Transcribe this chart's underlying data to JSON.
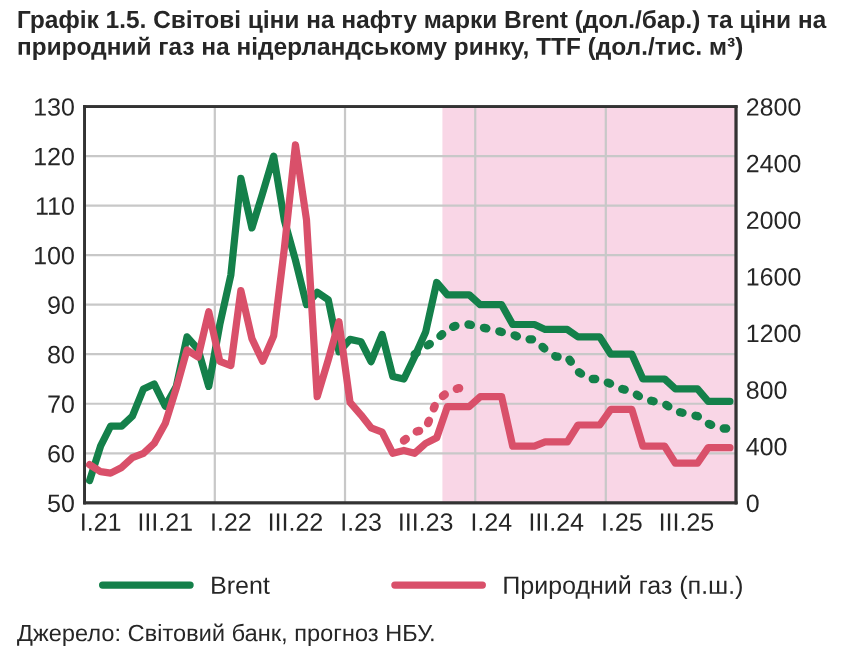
{
  "chart_data": {
    "type": "line",
    "title": "Графік 1.5. Світові ціни на нафту марки Brent (дол./бар.) та ціни на природний газ на нідерландському ринку, TTF (дол./тис. м³)",
    "annotations": [
      "Джерело: Світовий банк, прогноз НБУ."
    ],
    "x": [
      "2021-01-15",
      "2021-02-15",
      "2021-03-15",
      "2021-04-15",
      "2021-05-15",
      "2021-06-15",
      "2021-07-15",
      "2021-08-15",
      "2021-09-15",
      "2021-10-15",
      "2021-11-15",
      "2021-12-15",
      "2022-01-15",
      "2022-02-15",
      "2022-03-15",
      "2022-04-15",
      "2022-05-15",
      "2022-06-15",
      "2022-07-15",
      "2022-08-15",
      "2022-09-15",
      "2022-10-15",
      "2022-11-15",
      "2022-12-15",
      "2023-01-15",
      "2023-02-15",
      "2023-03-15",
      "2023-04-15",
      "2023-05-15",
      "2023-06-15",
      "2023-07-15",
      "2023-08-15",
      "2023-09-15",
      "2023-10-15",
      "2023-11-15",
      "2023-12-15",
      "2024-01-15",
      "2024-02-15",
      "2024-03-15",
      "2024-04-15",
      "2024-05-15",
      "2024-06-15",
      "2024-07-15",
      "2024-08-15",
      "2024-09-15",
      "2024-10-15",
      "2024-11-15",
      "2024-12-15",
      "2025-01-15",
      "2025-02-15",
      "2025-03-15",
      "2025-04-15",
      "2025-05-15",
      "2025-06-15",
      "2025-07-15",
      "2025-08-15",
      "2025-09-15",
      "2025-10-15",
      "2025-11-15",
      "2025-12-15"
    ],
    "series": [
      {
        "name": "Brent",
        "color": "#14804a",
        "line_style": "solid",
        "values": [
          54.5,
          61.5,
          65.5,
          65.5,
          67.5,
          73,
          74,
          69.5,
          73.5,
          83.5,
          81,
          73.5,
          86,
          96,
          115.5,
          105.5,
          112.5,
          120,
          107,
          99,
          90,
          92.5,
          91,
          80.5,
          83,
          82.5,
          78.5,
          84,
          75.5,
          75,
          79.5,
          84.5,
          94.5,
          92,
          92,
          92,
          90,
          90,
          90,
          86,
          86,
          86,
          85,
          85,
          85,
          83.5,
          83.5,
          83.5,
          80,
          80,
          80,
          75,
          75,
          75,
          73,
          73,
          73,
          70.5,
          70.5,
          70.5
        ]
      },
      {
        "name": "Природний газ (п.ш.)",
        "color": "#d9506a",
        "axis": "y2",
        "line_style": "solid",
        "values": [
          270,
          220,
          210,
          250,
          320,
          350,
          420,
          560,
          810,
          1080,
          1030,
          1350,
          1000,
          970,
          1500,
          1160,
          1000,
          1180,
          1800,
          2530,
          2000,
          750,
          1010,
          1280,
          710,
          620,
          530,
          500,
          350,
          370,
          350,
          420,
          460,
          680,
          680,
          680,
          750,
          750,
          750,
          400,
          400,
          400,
          430,
          430,
          430,
          550,
          550,
          550,
          660,
          660,
          660,
          400,
          400,
          400,
          280,
          280,
          280,
          390,
          390,
          390
        ]
      },
      {
        "color": "#14804a",
        "line_style": "dotted",
        "x": [
          "2023-07-15",
          "2023-08-15",
          "2023-09-15",
          "2023-10-15",
          "2023-11-15",
          "2023-12-15",
          "2024-01-15",
          "2024-02-15",
          "2024-03-15",
          "2024-04-15",
          "2024-05-15",
          "2024-06-15",
          "2024-07-15",
          "2024-08-15",
          "2024-09-15",
          "2024-10-15",
          "2024-11-15",
          "2024-12-15",
          "2025-01-15",
          "2025-02-15",
          "2025-03-15",
          "2025-04-15",
          "2025-05-15",
          "2025-06-15",
          "2025-07-15",
          "2025-08-15",
          "2025-09-15",
          "2025-10-15",
          "2025-11-15",
          "2025-12-15"
        ],
        "values": [
          80,
          81.5,
          83,
          85,
          86,
          86,
          85.5,
          85,
          84.5,
          84,
          83,
          83,
          81,
          79.5,
          79.5,
          76.5,
          75,
          75,
          74,
          73,
          72.5,
          71,
          70.5,
          70,
          68.5,
          68,
          67.5,
          66,
          65,
          65
        ]
      },
      {
        "color": "#d9506a",
        "axis": "y2",
        "line_style": "dotted",
        "x": [
          "2023-06-15",
          "2023-07-15",
          "2023-08-15",
          "2023-09-15",
          "2023-10-15",
          "2023-11-15",
          "2023-12-15"
        ],
        "values": [
          440,
          500,
          520,
          720,
          780,
          810,
          810
        ]
      }
    ],
    "xlim": [
      "2021-01-01",
      "2026-01-01"
    ],
    "xticks": [
      {
        "value": "2021-02-15",
        "label": "I.21"
      },
      {
        "value": "2021-08-15",
        "label": "III.21"
      },
      {
        "value": "2022-01-01",
        "label": null
      },
      {
        "value": "2022-02-15",
        "label": "I.22"
      },
      {
        "value": "2022-08-15",
        "label": "III.22"
      },
      {
        "value": "2023-01-01",
        "label": null
      },
      {
        "value": "2023-02-15",
        "label": "I.23"
      },
      {
        "value": "2023-08-15",
        "label": "III.23"
      },
      {
        "value": "2024-01-01",
        "label": null
      },
      {
        "value": "2024-02-15",
        "label": "I.24"
      },
      {
        "value": "2024-08-15",
        "label": "III.24"
      },
      {
        "value": "2025-01-01",
        "label": null
      },
      {
        "value": "2025-02-15",
        "label": "I.25"
      },
      {
        "value": "2025-08-15",
        "label": "III.25"
      }
    ],
    "ylim": [
      50,
      130
    ],
    "yticks": [
      50,
      60,
      70,
      80,
      90,
      100,
      110,
      120,
      130
    ],
    "y2lim": [
      0,
      2800
    ],
    "y2ticks": [
      0,
      400,
      800,
      1200,
      1600,
      2000,
      2400,
      2800
    ],
    "bands": [
      {
        "axis": "x",
        "from": "2023-10-01",
        "to": "2026-01-01",
        "color": "#f9d6e6"
      }
    ],
    "grid": true,
    "legend": "bottom",
    "marker": "none"
  }
}
